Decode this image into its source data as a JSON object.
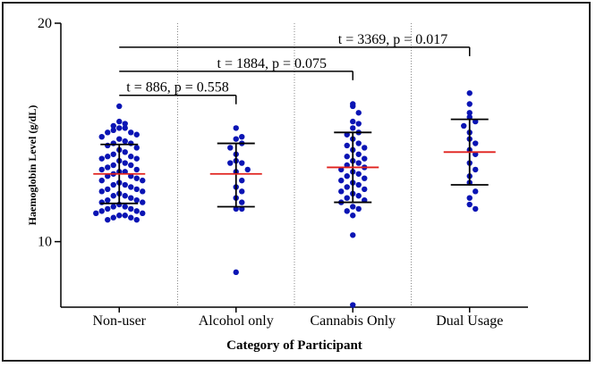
{
  "chart_data": {
    "type": "scatter",
    "xlabel": "Category of Participant",
    "ylabel": "Haemoglobin Level (g/dL)",
    "categories": [
      "Non-user",
      "Alcohol only",
      "Cannabis Only",
      "Dual Usage"
    ],
    "yticks": [
      10,
      20
    ],
    "ylim": [
      7,
      20
    ],
    "colors": {
      "points": "#0a14b4",
      "mean": "#e0201c",
      "error": "#000000",
      "separator": "#888888"
    },
    "groups": [
      {
        "name": "Non-user",
        "mean": 13.1,
        "sd_low": 11.75,
        "sd_high": 14.45,
        "values": [
          16.2,
          15.5,
          15.4,
          15.3,
          15.2,
          15.2,
          15.1,
          15.0,
          15.0,
          14.9,
          14.8,
          14.7,
          14.6,
          14.5,
          14.5,
          14.4,
          14.3,
          14.2,
          14.1,
          14.0,
          13.9,
          13.9,
          13.8,
          13.8,
          13.7,
          13.6,
          13.5,
          13.5,
          13.4,
          13.3,
          13.3,
          13.2,
          13.2,
          13.1,
          13.0,
          13.0,
          12.9,
          12.8,
          12.8,
          12.7,
          12.6,
          12.6,
          12.5,
          12.4,
          12.4,
          12.3,
          12.3,
          12.2,
          12.1,
          12.1,
          12.0,
          11.9,
          11.9,
          11.8,
          11.8,
          11.7,
          11.6,
          11.6,
          11.5,
          11.5,
          11.4,
          11.4,
          11.3,
          11.3,
          11.2,
          11.2,
          11.1,
          11.1,
          11.0,
          11.0
        ]
      },
      {
        "name": "Alcohol only",
        "mean": 13.1,
        "sd_low": 11.6,
        "sd_high": 14.5,
        "values": [
          15.2,
          14.8,
          14.7,
          14.5,
          14.3,
          14.0,
          13.7,
          13.6,
          13.6,
          13.3,
          13.2,
          12.8,
          12.5,
          12.3,
          12.0,
          11.8,
          11.5,
          11.5,
          8.6
        ]
      },
      {
        "name": "Cannabis Only",
        "mean": 13.4,
        "sd_low": 11.8,
        "sd_high": 15.0,
        "values": [
          16.3,
          16.2,
          15.9,
          15.5,
          15.4,
          15.2,
          15.0,
          14.9,
          14.7,
          14.5,
          14.4,
          14.3,
          14.2,
          14.0,
          13.9,
          13.8,
          13.7,
          13.6,
          13.5,
          13.4,
          13.3,
          13.2,
          13.1,
          13.0,
          12.9,
          12.8,
          12.7,
          12.6,
          12.5,
          12.4,
          12.3,
          12.2,
          12.1,
          12.0,
          11.9,
          11.8,
          11.6,
          11.5,
          11.4,
          11.2,
          10.3,
          7.1
        ]
      },
      {
        "name": "Dual Usage",
        "mean": 14.1,
        "sd_low": 12.6,
        "sd_high": 15.6,
        "values": [
          16.8,
          16.3,
          15.9,
          15.7,
          15.5,
          15.3,
          15.0,
          14.7,
          14.5,
          14.2,
          14.0,
          13.6,
          13.3,
          13.0,
          12.7,
          12.3,
          12.0,
          11.7,
          11.5
        ]
      }
    ],
    "annotations": [
      {
        "text": "t = 886, p = 0.558",
        "from": 0,
        "to": 1,
        "y": 16.7
      },
      {
        "text": "t = 1884, p = 0.075",
        "from": 0,
        "to": 2,
        "y": 17.8
      },
      {
        "text": "t = 3369, p = 0.017",
        "from": 0,
        "to": 3,
        "y": 18.9
      }
    ]
  }
}
